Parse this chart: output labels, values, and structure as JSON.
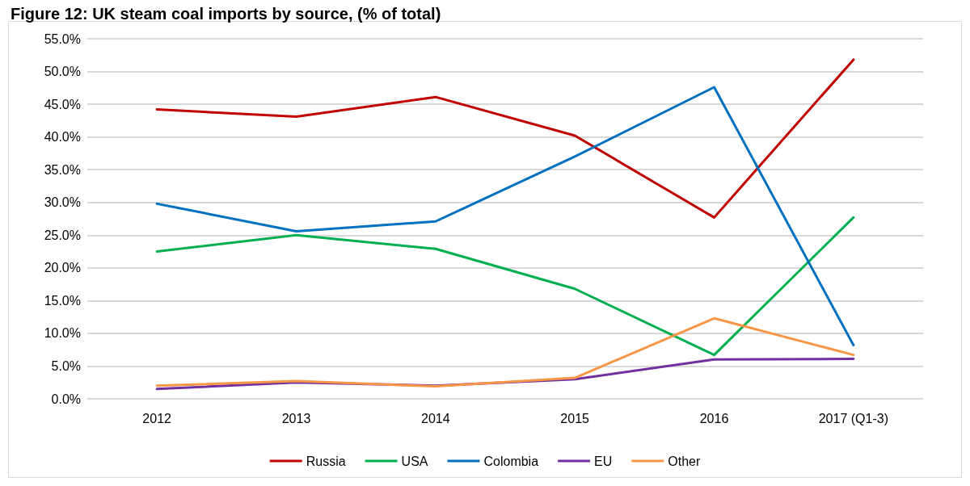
{
  "chart_data": {
    "type": "line",
    "title": "Figure 12: UK steam coal imports by source, (% of total)",
    "categories": [
      "2012",
      "2013",
      "2014",
      "2015",
      "2016",
      "2017 (Q1-3)"
    ],
    "series": [
      {
        "name": "Russia",
        "color": "#c00000",
        "values": [
          44.2,
          43.1,
          46.1,
          40.2,
          27.7,
          51.8
        ]
      },
      {
        "name": "USA",
        "color": "#00b050",
        "values": [
          22.5,
          25.0,
          22.9,
          16.8,
          6.7,
          27.7
        ]
      },
      {
        "name": "Colombia",
        "color": "#0070c0",
        "values": [
          29.8,
          25.6,
          27.1,
          37.0,
          47.6,
          8.2
        ]
      },
      {
        "name": "EU",
        "color": "#7030a0",
        "values": [
          1.5,
          2.5,
          2.0,
          3.0,
          6.0,
          6.1
        ]
      },
      {
        "name": "Other",
        "color": "#f79646",
        "values": [
          2.0,
          2.7,
          1.9,
          3.2,
          12.3,
          6.7
        ]
      }
    ],
    "ylim": [
      0,
      55
    ],
    "yticks": [
      {
        "value": 0,
        "label": "0.0%"
      },
      {
        "value": 5,
        "label": "5.0%"
      },
      {
        "value": 10,
        "label": "10.0%"
      },
      {
        "value": 15,
        "label": "15.0%"
      },
      {
        "value": 20,
        "label": "20.0%"
      },
      {
        "value": 25,
        "label": "25.0%"
      },
      {
        "value": 30,
        "label": "30.0%"
      },
      {
        "value": 35,
        "label": "35.0%"
      },
      {
        "value": 40,
        "label": "40.0%"
      },
      {
        "value": 45,
        "label": "45.0%"
      },
      {
        "value": 50,
        "label": "50.0%"
      },
      {
        "value": 55,
        "label": "55.0%"
      }
    ],
    "grid": "y",
    "legend": "bottom",
    "marker": "none",
    "line_style": "solid"
  }
}
